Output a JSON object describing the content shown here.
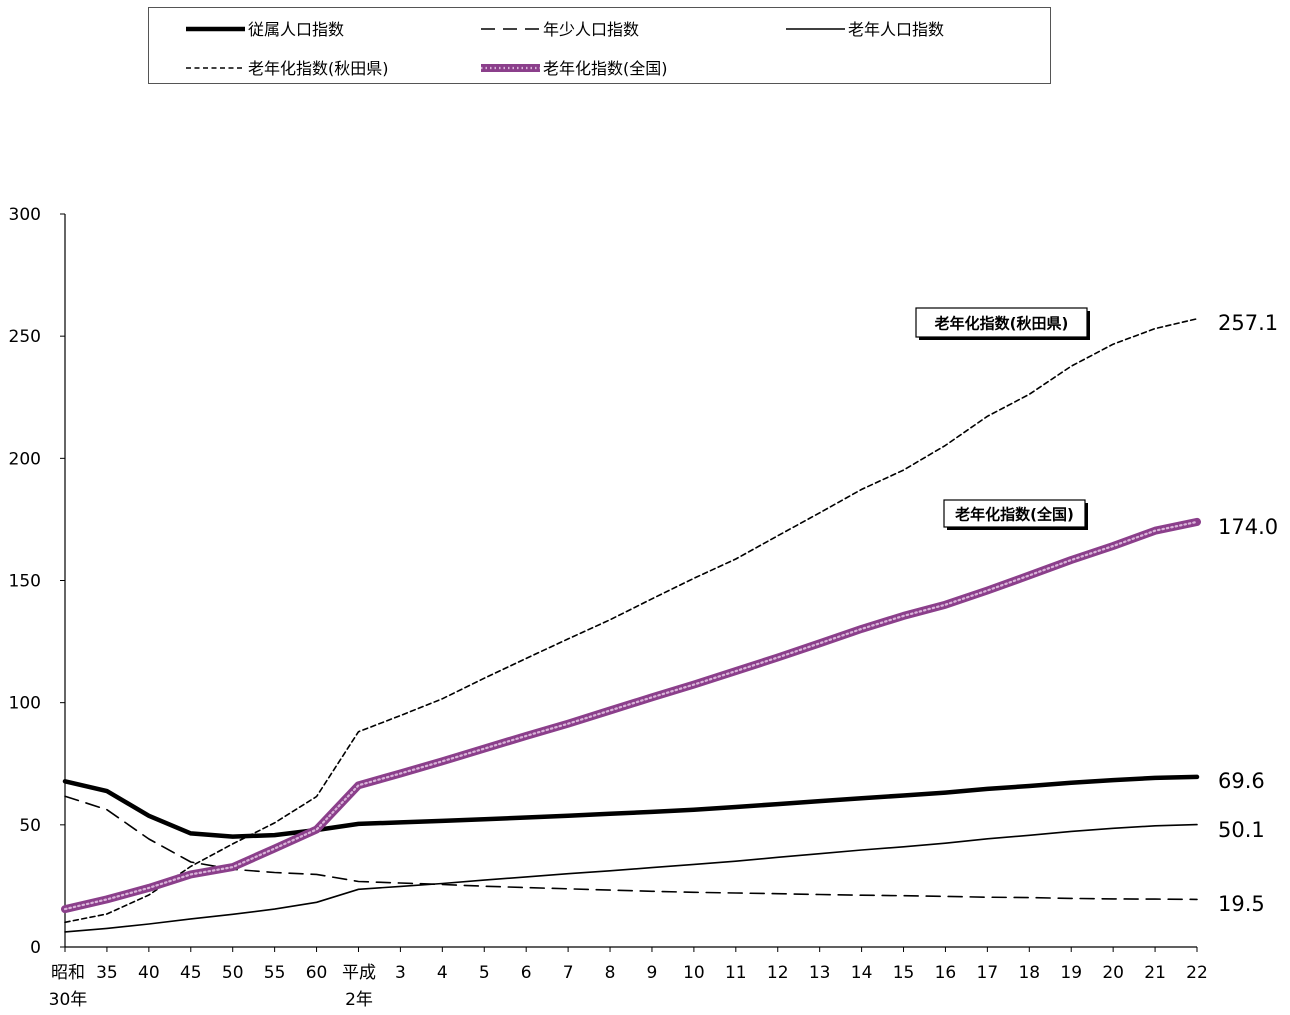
{
  "chart_data": {
    "type": "line",
    "title": "",
    "xlabel": "",
    "ylabel": "",
    "ylim": [
      0,
      300
    ],
    "yticks": [
      "0",
      "50",
      "100",
      "150",
      "200",
      "250",
      "300"
    ],
    "grid": false,
    "legend_position": "top",
    "categories": [
      [
        "昭和",
        "30年"
      ],
      [
        "35"
      ],
      [
        "40"
      ],
      [
        "45"
      ],
      [
        "50"
      ],
      [
        "55"
      ],
      [
        "60"
      ],
      [
        "平成",
        "2年"
      ],
      [
        "3"
      ],
      [
        "4"
      ],
      [
        "5"
      ],
      [
        "6"
      ],
      [
        "7"
      ],
      [
        "8"
      ],
      [
        "9"
      ],
      [
        "10"
      ],
      [
        "11"
      ],
      [
        "12"
      ],
      [
        "13"
      ],
      [
        "14"
      ],
      [
        "15"
      ],
      [
        "16"
      ],
      [
        "17"
      ],
      [
        "18"
      ],
      [
        "19"
      ],
      [
        "20"
      ],
      [
        "21"
      ],
      [
        "22"
      ]
    ],
    "series": [
      {
        "name": "従属人口指数",
        "style": "thick-solid",
        "color": "#000000",
        "values": [
          67.8,
          63.8,
          53.7,
          46.5,
          45.2,
          45.8,
          47.9,
          50.4,
          51.0,
          51.6,
          52.3,
          53.0,
          53.7,
          54.5,
          55.3,
          56.2,
          57.3,
          58.5,
          59.7,
          60.9,
          62.0,
          63.2,
          64.7,
          65.9,
          67.2,
          68.3,
          69.2,
          69.6
        ]
      },
      {
        "name": "年少人口指数",
        "style": "dashed",
        "color": "#000000",
        "values": [
          61.7,
          56.2,
          44.2,
          34.8,
          31.8,
          30.5,
          29.7,
          26.8,
          26.2,
          25.6,
          24.9,
          24.3,
          23.8,
          23.3,
          22.8,
          22.4,
          22.1,
          21.8,
          21.5,
          21.2,
          21.0,
          20.7,
          20.4,
          20.2,
          19.9,
          19.7,
          19.6,
          19.5
        ]
      },
      {
        "name": "老年人口指数",
        "style": "solid",
        "color": "#000000",
        "values": [
          6.2,
          7.6,
          9.4,
          11.5,
          13.4,
          15.5,
          18.3,
          23.6,
          24.8,
          26.0,
          27.4,
          28.7,
          30.0,
          31.2,
          32.5,
          33.8,
          35.1,
          36.7,
          38.2,
          39.7,
          41.0,
          42.5,
          44.3,
          45.7,
          47.3,
          48.6,
          49.6,
          50.1
        ]
      },
      {
        "name": "老年化指数(秋田県)",
        "style": "dotted",
        "color": "#000000",
        "values": [
          10.1,
          13.5,
          21.3,
          33.0,
          42.2,
          50.8,
          61.6,
          88.1,
          94.7,
          101.6,
          110.0,
          118.1,
          126.1,
          133.9,
          142.5,
          150.9,
          158.8,
          168.3,
          177.7,
          187.3,
          195.2,
          205.3,
          217.2,
          226.2,
          237.7,
          246.7,
          253.1,
          257.1
        ]
      },
      {
        "name": "老年化指数(全国)",
        "style": "thick-purple",
        "color": "#8B3F8B",
        "values": [
          15.5,
          19.5,
          24.2,
          29.7,
          32.7,
          40.3,
          48.1,
          66.2,
          71.0,
          76.0,
          81.2,
          86.4,
          91.4,
          96.8,
          102.2,
          107.4,
          112.9,
          118.5,
          124.3,
          130.2,
          135.5,
          140.1,
          145.9,
          152.1,
          158.4,
          164.1,
          170.4,
          174.0
        ]
      }
    ],
    "end_labels": [
      "257.1",
      "174.0",
      "69.6",
      "50.1",
      "19.5"
    ],
    "callouts": [
      {
        "text": "老年化指数(秋田県)"
      },
      {
        "text": "老年化指数(全国)"
      }
    ]
  }
}
